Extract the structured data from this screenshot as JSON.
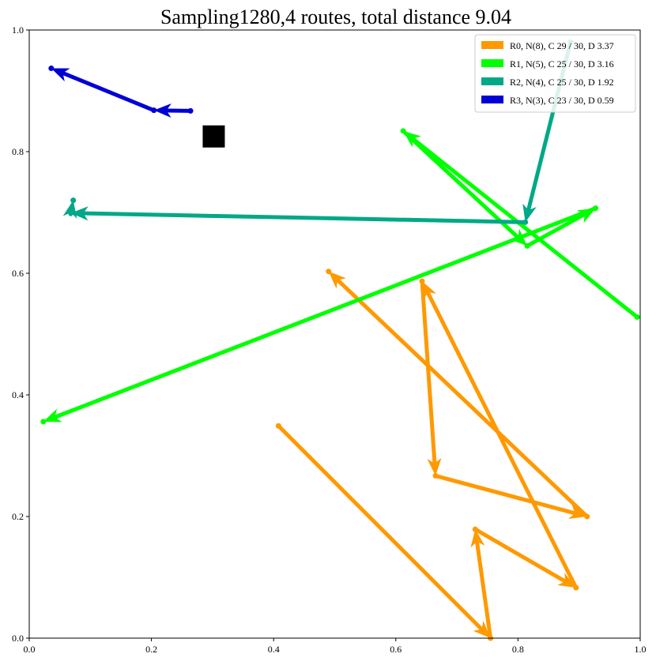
{
  "chart_data": {
    "type": "line",
    "title": "Sampling1280,4 routes, total distance 9.04",
    "xlabel": "",
    "ylabel": "",
    "xlim": [
      0,
      1
    ],
    "ylim": [
      0,
      1
    ],
    "grid": false,
    "legend_position": "top-right",
    "x_ticks": [
      "0.0",
      "0.2",
      "0.4",
      "0.6",
      "0.8",
      "1.0"
    ],
    "y_ticks": [
      "0.0",
      "0.2",
      "0.4",
      "0.6",
      "0.8",
      "1.0"
    ],
    "depot": {
      "x": 0.302,
      "y": 0.825,
      "color": "#000000"
    },
    "series": [
      {
        "name": "R0, N(8), C 29 / 30, D 3.37",
        "color": "#ff9900",
        "points": [
          [
            0.408,
            0.349
          ],
          [
            0.755,
            0.0
          ],
          [
            0.73,
            0.179
          ],
          [
            0.895,
            0.083
          ],
          [
            0.643,
            0.587
          ],
          [
            0.665,
            0.267
          ],
          [
            0.913,
            0.2
          ],
          [
            0.49,
            0.603
          ]
        ]
      },
      {
        "name": "R1, N(5), C 25 / 30, D 3.16",
        "color": "#00ff00",
        "points": [
          [
            0.995,
            0.528
          ],
          [
            0.612,
            0.834
          ],
          [
            0.815,
            0.645
          ],
          [
            0.927,
            0.707
          ],
          [
            0.023,
            0.356
          ]
        ]
      },
      {
        "name": "R2, N(4), C 25 / 30, D 1.92",
        "color": "#00a887",
        "points": [
          [
            0.886,
            0.98
          ],
          [
            0.812,
            0.684
          ],
          [
            0.068,
            0.699
          ],
          [
            0.072,
            0.72
          ]
        ]
      },
      {
        "name": "R3, N(3), C 23 / 30, D 0.59",
        "color": "#0000d5",
        "points": [
          [
            0.264,
            0.867
          ],
          [
            0.204,
            0.868
          ],
          [
            0.036,
            0.937
          ]
        ]
      }
    ]
  }
}
